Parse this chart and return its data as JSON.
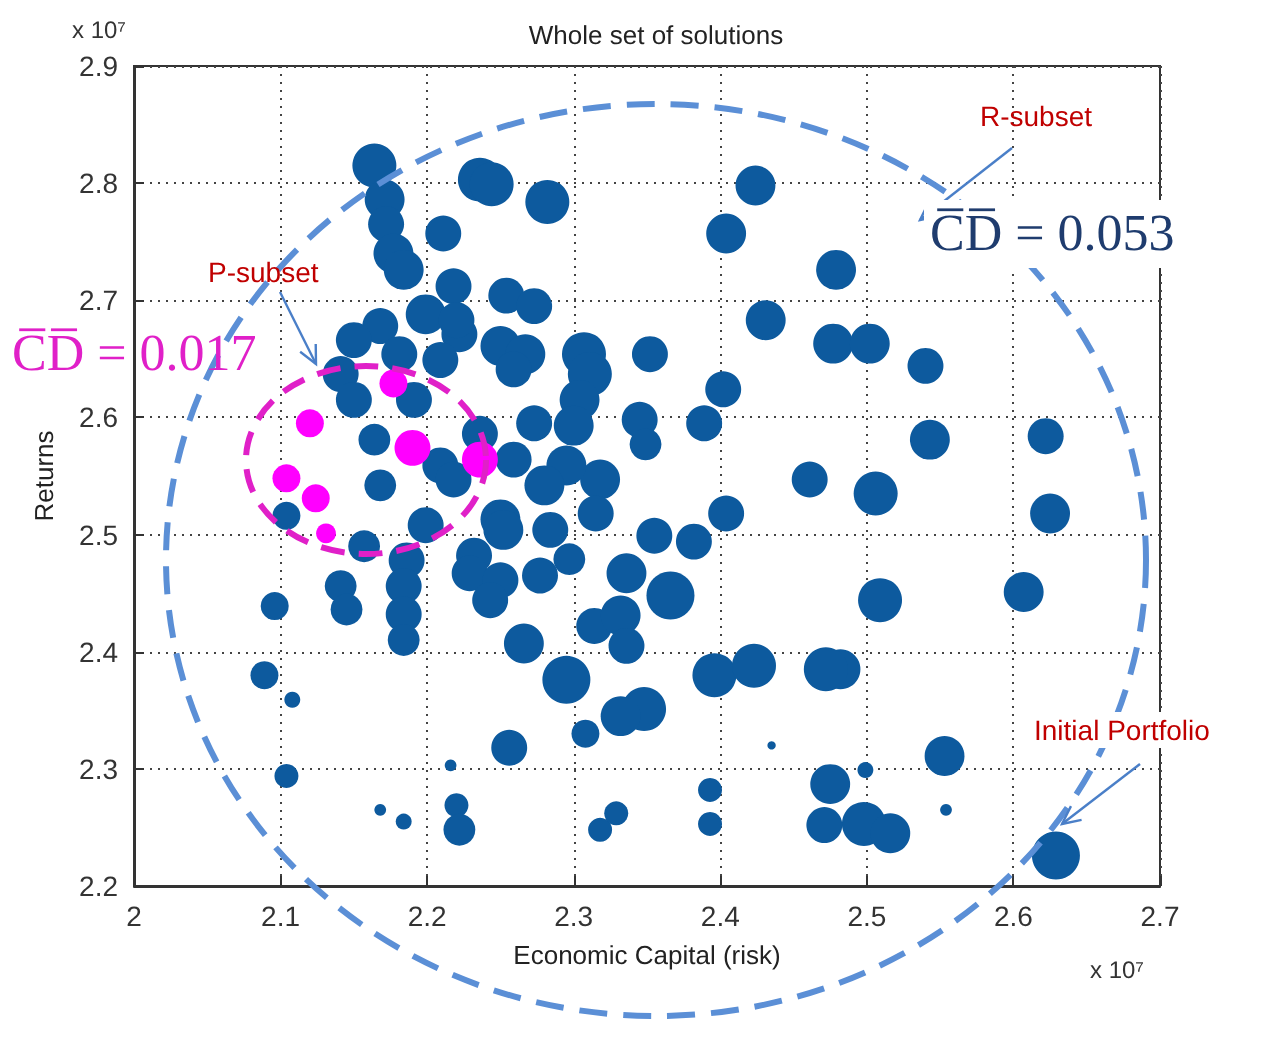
{
  "chart_data": {
    "type": "bubble",
    "title": "Whole set of solutions",
    "xlabel": "Economic Capital (risk)",
    "ylabel": "Returns",
    "annotations": [
      "x 10⁷",
      "x 10⁷",
      "R-subset",
      "C̅D̅ = 0.053",
      "P-subset",
      "C̅D̅ = 0.017",
      "Initial Portfolio"
    ],
    "xlim": [
      2,
      2.7
    ],
    "xticks": [
      2,
      2.1,
      2.2,
      2.3,
      2.4,
      2.5,
      2.6,
      2.7
    ],
    "ylim": [
      2.2,
      2.9
    ],
    "yticks": [
      2.2,
      2.3,
      2.4,
      2.5,
      2.6,
      2.7,
      2.8,
      2.9
    ],
    "grid": true,
    "marker": "circle",
    "series": [
      {
        "color": "#0d5a9e",
        "x": [
          2.164,
          2.171,
          2.172,
          2.211,
          2.177,
          2.184,
          2.218,
          2.199,
          2.168,
          2.15,
          2.222,
          2.181,
          2.209,
          2.141,
          2.15,
          2.191,
          2.164,
          2.209,
          2.168,
          2.104,
          2.236,
          2.244,
          2.282,
          2.254,
          2.273,
          2.22,
          2.25,
          2.267,
          2.259,
          2.307,
          2.311,
          2.304,
          2.3,
          2.352,
          2.345,
          2.349,
          2.402,
          2.389,
          2.273,
          2.236,
          2.424,
          2.404,
          2.431,
          2.479,
          2.477,
          2.502,
          2.461,
          2.404,
          2.318,
          2.295,
          2.28,
          2.259,
          2.218,
          2.25,
          2.54,
          2.543,
          2.622,
          2.506,
          2.625,
          2.607,
          2.509,
          2.482,
          2.553,
          2.499,
          2.498,
          2.516,
          2.554,
          2.629,
          2.252,
          2.232,
          2.229,
          2.25,
          2.243,
          2.277,
          2.284,
          2.297,
          2.266,
          2.295,
          2.315,
          2.355,
          2.382,
          2.336,
          2.366,
          2.314,
          2.332,
          2.336,
          2.396,
          2.423,
          2.472,
          2.348,
          2.332,
          2.308,
          2.256,
          2.216,
          2.22,
          2.222,
          2.318,
          2.329,
          2.393,
          2.393,
          2.435,
          2.475,
          2.471,
          2.157,
          2.186,
          2.184,
          2.184,
          2.184,
          2.141,
          2.145,
          2.096,
          2.089,
          2.108,
          2.104,
          2.168,
          2.184,
          2.199
        ],
        "values": [
          2.815,
          2.786,
          2.765,
          2.757,
          2.74,
          2.726,
          2.712,
          2.688,
          2.678,
          2.666,
          2.671,
          2.654,
          2.649,
          2.637,
          2.615,
          2.615,
          2.581,
          2.559,
          2.542,
          2.516,
          2.803,
          2.799,
          2.784,
          2.704,
          2.695,
          2.683,
          2.661,
          2.654,
          2.641,
          2.654,
          2.637,
          2.615,
          2.593,
          2.654,
          2.598,
          2.577,
          2.624,
          2.595,
          2.595,
          2.586,
          2.798,
          2.757,
          2.683,
          2.726,
          2.663,
          2.663,
          2.547,
          2.518,
          2.547,
          2.559,
          2.542,
          2.564,
          2.547,
          2.513,
          2.644,
          2.581,
          2.584,
          2.535,
          2.518,
          2.451,
          2.444,
          2.385,
          2.311,
          2.299,
          2.253,
          2.245,
          2.265,
          2.226,
          2.504,
          2.482,
          2.467,
          2.461,
          2.444,
          2.465,
          2.504,
          2.479,
          2.407,
          2.376,
          2.518,
          2.499,
          2.494,
          2.467,
          2.448,
          2.422,
          2.431,
          2.405,
          2.38,
          2.388,
          2.385,
          2.351,
          2.345,
          2.33,
          2.318,
          2.303,
          2.269,
          2.248,
          2.248,
          2.262,
          2.282,
          2.253,
          2.32,
          2.287,
          2.252,
          2.49,
          2.478,
          2.456,
          2.432,
          2.41,
          2.456,
          2.436,
          2.439,
          2.38,
          2.359,
          2.294,
          2.265,
          2.255,
          2.508
        ],
        "sizes": [
          0.84,
          0.69,
          0.56,
          0.56,
          0.69,
          0.69,
          0.56,
          0.69,
          0.56,
          0.56,
          0.56,
          0.56,
          0.56,
          0.56,
          0.56,
          0.56,
          0.44,
          0.56,
          0.44,
          0.34,
          0.84,
          0.84,
          0.84,
          0.56,
          0.56,
          0.56,
          0.69,
          0.69,
          0.56,
          0.84,
          0.84,
          0.69,
          0.69,
          0.56,
          0.56,
          0.44,
          0.56,
          0.56,
          0.56,
          0.56,
          0.69,
          0.69,
          0.69,
          0.69,
          0.69,
          0.69,
          0.56,
          0.56,
          0.69,
          0.69,
          0.69,
          0.56,
          0.56,
          0.69,
          0.56,
          0.69,
          0.56,
          0.84,
          0.69,
          0.69,
          0.84,
          0.69,
          0.69,
          0.11,
          0.84,
          0.69,
          0.06,
          1,
          0.69,
          0.56,
          0.56,
          0.56,
          0.56,
          0.56,
          0.56,
          0.44,
          0.69,
          1,
          0.56,
          0.56,
          0.56,
          0.69,
          1,
          0.56,
          0.69,
          0.56,
          0.84,
          0.84,
          0.84,
          0.84,
          0.69,
          0.34,
          0.56,
          0.06,
          0.25,
          0.44,
          0.25,
          0.25,
          0.25,
          0.25,
          0.03,
          0.69,
          0.56,
          0.44,
          0.56,
          0.56,
          0.56,
          0.44,
          0.44,
          0.44,
          0.34,
          0.34,
          0.11,
          0.25,
          0.06,
          0.11,
          0.56
        ]
      },
      {
        "color": "#ff00ff",
        "x": [
          2.177,
          2.12,
          2.19,
          2.104,
          2.124,
          2.131,
          2.236
        ],
        "values": [
          2.629,
          2.595,
          2.574,
          2.548,
          2.531,
          2.501,
          2.564
        ],
        "sizes": [
          0.34,
          0.34,
          0.56,
          0.34,
          0.34,
          0.17,
          0.56
        ]
      }
    ]
  }
}
